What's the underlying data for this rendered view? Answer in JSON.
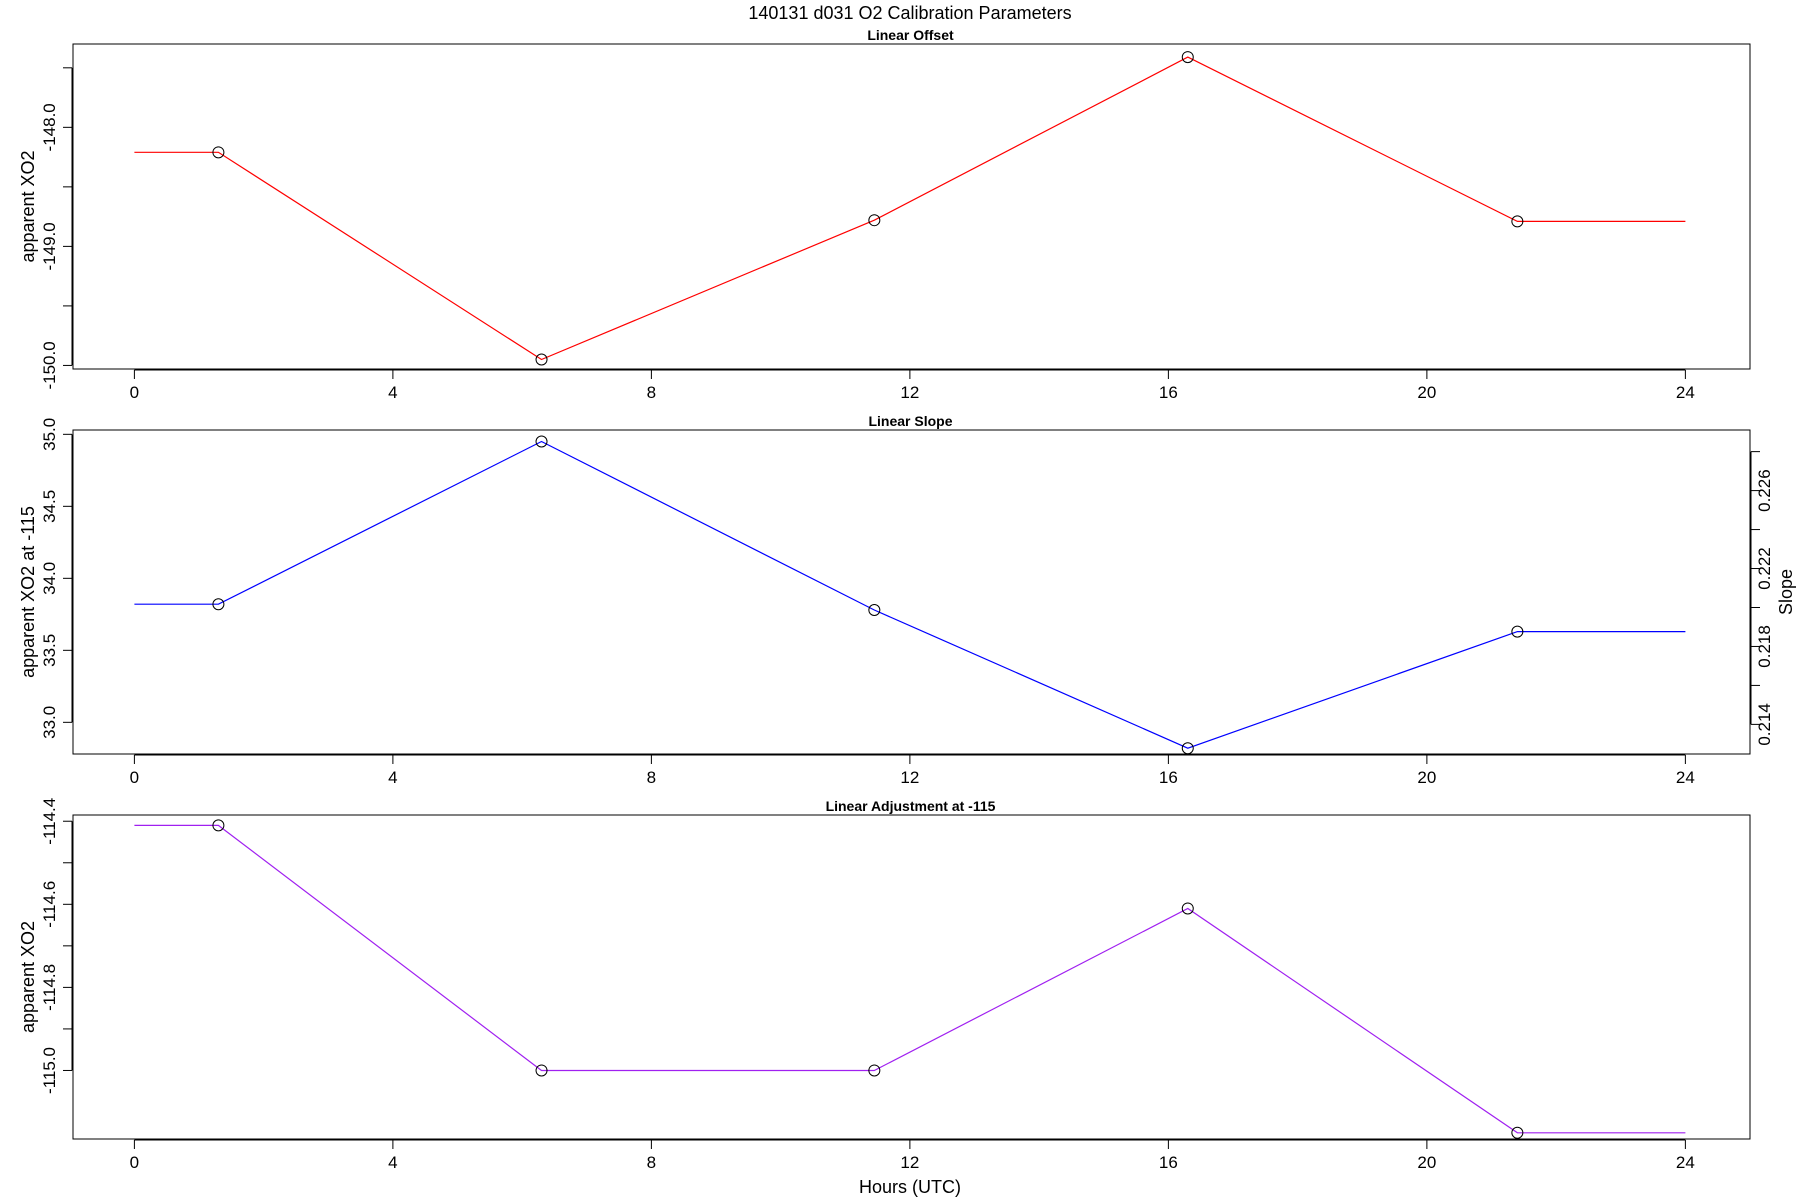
{
  "figure": {
    "title": "140131   d031   O2 Calibration Parameters",
    "xlabel": "Hours (UTC)"
  },
  "chart_data": [
    {
      "type": "line",
      "title": "Linear Offset",
      "xlabel": "",
      "ylabel": "apparent XO2",
      "xlim": [
        -0.95,
        25
      ],
      "ylim": [
        -150.03,
        -147.3
      ],
      "x_ticks": [
        0,
        4,
        8,
        12,
        16,
        20,
        24
      ],
      "y_ticks": [
        -150.0,
        -149.5,
        -149.0,
        -148.5,
        -148.0,
        -147.5
      ],
      "y_tick_labels": [
        "-150.0",
        "",
        "-149.0",
        "",
        "-148.0",
        ""
      ],
      "color": "#ff0000",
      "x": [
        0,
        1.3,
        6.3,
        11.45,
        16.3,
        21.4,
        24
      ],
      "y": [
        -148.21,
        -148.21,
        -149.95,
        -148.78,
        -147.41,
        -148.79,
        -148.79
      ],
      "markers": [
        false,
        true,
        true,
        true,
        true,
        true,
        false
      ],
      "grid": false,
      "secondary_axis": null
    },
    {
      "type": "line",
      "title": "Linear Slope",
      "xlabel": "",
      "ylabel": "apparent XO2 at -115",
      "xlim": [
        -0.95,
        25
      ],
      "ylim": [
        32.78,
        35.03
      ],
      "x_ticks": [
        0,
        4,
        8,
        12,
        16,
        20,
        24
      ],
      "y_ticks": [
        33.0,
        33.5,
        34.0,
        34.5,
        35.0
      ],
      "y_tick_labels": [
        "33.0",
        "33.5",
        "34.0",
        "34.5",
        "35.0"
      ],
      "color": "#0000ff",
      "x": [
        0,
        1.3,
        6.3,
        11.45,
        16.3,
        21.4,
        24
      ],
      "y": [
        33.82,
        33.82,
        34.95,
        33.78,
        32.82,
        33.63,
        33.63
      ],
      "markers": [
        false,
        true,
        true,
        true,
        true,
        true,
        false
      ],
      "grid": false,
      "secondary_axis": {
        "label": "Slope",
        "ylim": [
          0.21248,
          0.22911
        ],
        "ticks": [
          0.214,
          0.216,
          0.218,
          0.22,
          0.222,
          0.224,
          0.226,
          0.228
        ],
        "tick_labels": [
          "0.214",
          "",
          "0.218",
          "",
          "0.222",
          "",
          "0.226",
          ""
        ]
      }
    },
    {
      "type": "line",
      "title": "Linear Adjustment at -115",
      "xlabel": "",
      "ylabel": "apparent XO2",
      "xlim": [
        -0.95,
        25
      ],
      "ylim": [
        -115.165,
        -114.385
      ],
      "x_ticks": [
        0,
        4,
        8,
        12,
        16,
        20,
        24
      ],
      "y_ticks": [
        -115.0,
        -114.9,
        -114.8,
        -114.7,
        -114.6,
        -114.5,
        -114.4
      ],
      "y_tick_labels": [
        "-115.0",
        "",
        "-114.8",
        "",
        "-114.6",
        "",
        "-114.4"
      ],
      "color": "#a020f0",
      "x": [
        0,
        1.3,
        6.3,
        11.45,
        16.3,
        21.4,
        24
      ],
      "y": [
        -114.41,
        -114.41,
        -115.0,
        -115.0,
        -114.61,
        -115.15,
        -115.15
      ],
      "markers": [
        false,
        true,
        true,
        true,
        true,
        true,
        false
      ],
      "grid": false,
      "secondary_axis": null
    }
  ]
}
